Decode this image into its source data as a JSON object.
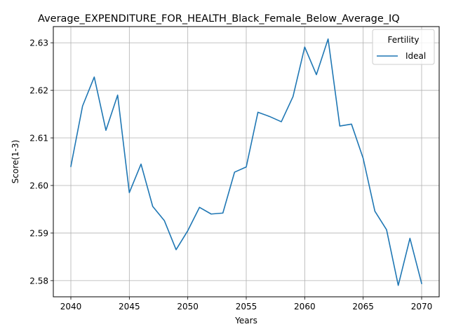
{
  "chart_data": {
    "type": "line",
    "title": "Average_EXPENDITURE_FOR_HEALTH_Black_Female_Below_Average_IQ",
    "xlabel": "Years",
    "ylabel": "Score(1-3)",
    "xlim": [
      2038.5,
      2071.5
    ],
    "ylim": [
      2.5766,
      2.6334
    ],
    "xticks": [
      2040,
      2045,
      2050,
      2055,
      2060,
      2065,
      2070
    ],
    "yticks": [
      2.58,
      2.59,
      2.6,
      2.61,
      2.62,
      2.63
    ],
    "ytick_labels": [
      "2.58",
      "2.59",
      "2.60",
      "2.61",
      "2.62",
      "2.63"
    ],
    "grid": true,
    "legend": {
      "title": "Fertility",
      "position": "top-right"
    },
    "x": [
      2040,
      2041,
      2042,
      2043,
      2044,
      2045,
      2046,
      2047,
      2048,
      2049,
      2050,
      2051,
      2052,
      2053,
      2054,
      2055,
      2056,
      2057,
      2058,
      2059,
      2060,
      2061,
      2062,
      2063,
      2064,
      2065,
      2066,
      2067,
      2068,
      2069,
      2070
    ],
    "series": [
      {
        "name": "Ideal",
        "color": "#1f77b4",
        "values": [
          2.604,
          2.6167,
          2.6228,
          2.6116,
          2.619,
          2.5985,
          2.6045,
          2.5956,
          2.5926,
          2.5865,
          2.5905,
          2.5954,
          2.594,
          2.5942,
          2.6028,
          2.6039,
          2.6154,
          2.6145,
          2.6134,
          2.6187,
          2.6291,
          2.6233,
          2.6308,
          2.6125,
          2.6129,
          2.6057,
          2.5946,
          2.5907,
          2.579,
          2.5889,
          2.5794
        ]
      }
    ]
  }
}
